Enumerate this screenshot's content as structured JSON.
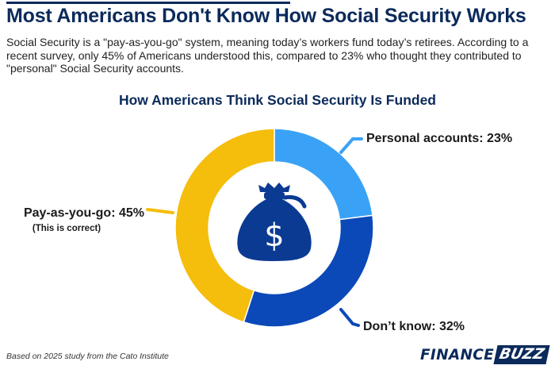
{
  "header": {
    "title": "Most Americans Don't Know How Social Security Works",
    "description": "Social Security is a \"pay-as-you-go\" system, meaning today’s workers fund today’s retirees. According to a recent survey, only 45% of Americans understood this, compared to 23% who thought they contributed to \"personal\" Social Security accounts."
  },
  "chart_data": {
    "type": "pie",
    "title": "How Americans Think Social Security Is Funded",
    "categories": [
      "Personal accounts",
      "Don’t know",
      "Pay-as-you-go"
    ],
    "values": [
      23,
      32,
      45
    ],
    "labels": [
      "Personal accounts: 23%",
      "Don’t know: 32%",
      "Pay-as-you-go: 45%"
    ],
    "annotations": [
      "",
      "",
      "(This is correct)"
    ],
    "colors": [
      "#3aa2f6",
      "#0b49b8",
      "#f5bd0c"
    ],
    "donut": true,
    "center_icon": "money-bag-icon",
    "center_icon_symbol": "$"
  },
  "footer": {
    "source": "Based on 2025 study from the Cato Institute",
    "brand_part1": "FINANCE",
    "brand_part2": "BUZZ"
  }
}
